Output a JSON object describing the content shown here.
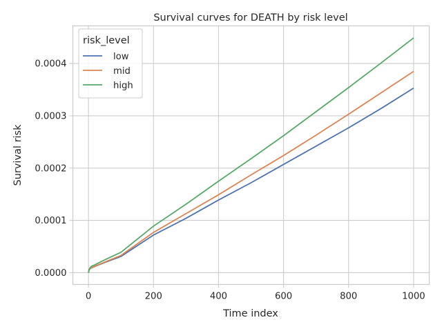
{
  "chart_data": {
    "type": "line",
    "title": "Survival curves for DEATH by risk level",
    "xlabel": "Time index",
    "ylabel": "Survival risk",
    "xlim": [
      -48,
      1048
    ],
    "ylim": [
      -2.25e-05,
      0.000472
    ],
    "x_ticks": [
      0,
      200,
      400,
      600,
      800,
      1000
    ],
    "x_tick_labels": [
      "0",
      "200",
      "400",
      "600",
      "800",
      "1000"
    ],
    "y_ticks": [
      0,
      0.0001,
      0.0002,
      0.0003,
      0.0004
    ],
    "y_tick_labels": [
      "0.0000",
      "0.0001",
      "0.0002",
      "0.0003",
      "0.0004"
    ],
    "grid": true,
    "legend": {
      "title": "risk_level",
      "placement": "top-left"
    },
    "x": [
      0,
      2,
      5,
      10,
      20,
      50,
      100,
      200,
      300,
      400,
      500,
      600,
      700,
      800,
      900,
      1000
    ],
    "series": [
      {
        "name": "low",
        "color": "#4c72b0",
        "values": [
          0,
          5e-06,
          7.5e-06,
          9.5e-06,
          1.2e-05,
          1.95e-05,
          3.1e-05,
          7.2e-05,
          0.000104,
          0.000139,
          0.000172,
          0.000207,
          0.000242,
          0.000277,
          0.000314,
          0.000353
        ]
      },
      {
        "name": "mid",
        "color": "#dd8452",
        "values": [
          0,
          5.2e-06,
          7.8e-06,
          9.9e-06,
          1.25e-05,
          2.02e-05,
          3.3e-05,
          7.7e-05,
          0.000113,
          0.000149,
          0.000187,
          0.000224,
          0.000263,
          0.000303,
          0.000344,
          0.000385
        ]
      },
      {
        "name": "high",
        "color": "#55a868",
        "values": [
          0,
          6.2e-06,
          9.3e-06,
          1.25e-05,
          1.52e-05,
          2.45e-05,
          3.9e-05,
          8.9e-05,
          0.000131,
          0.000175,
          0.000218,
          0.000262,
          0.000308,
          0.000354,
          0.000401,
          0.000449
        ]
      }
    ]
  }
}
